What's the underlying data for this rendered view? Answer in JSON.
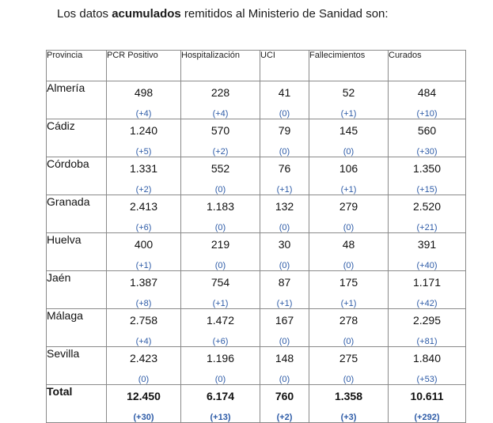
{
  "intro": {
    "prefix": "Los datos ",
    "bold": "acumulados",
    "suffix": " remitidos al Ministerio de Sanidad son:"
  },
  "table": {
    "headers": [
      "Provincia",
      "PCR Positivo",
      "Hospitalización",
      "UCI",
      "Fallecimientos",
      "Curados"
    ],
    "rows": [
      {
        "provincia": "Almería",
        "values": [
          "498",
          "228",
          "41",
          "52",
          "484"
        ],
        "deltas": [
          "(+4)",
          "(+4)",
          "(0)",
          "(+1)",
          "(+10)"
        ]
      },
      {
        "provincia": "Cádiz",
        "values": [
          "1.240",
          "570",
          "79",
          "145",
          "560"
        ],
        "deltas": [
          "(+5)",
          "(+2)",
          "(0)",
          "(0)",
          "(+30)"
        ]
      },
      {
        "provincia": "Córdoba",
        "values": [
          "1.331",
          "552",
          "76",
          "106",
          "1.350"
        ],
        "deltas": [
          "(+2)",
          "(0)",
          "(+1)",
          "(+1)",
          "(+15)"
        ]
      },
      {
        "provincia": "Granada",
        "values": [
          "2.413",
          "1.183",
          "132",
          "279",
          "2.520"
        ],
        "deltas": [
          "(+6)",
          "(0)",
          "(0)",
          "(0)",
          "(+21)"
        ]
      },
      {
        "provincia": "Huelva",
        "values": [
          "400",
          "219",
          "30",
          "48",
          "391"
        ],
        "deltas": [
          "(+1)",
          "(0)",
          "(0)",
          "(0)",
          "(+40)"
        ]
      },
      {
        "provincia": "Jaén",
        "values": [
          "1.387",
          "754",
          "87",
          "175",
          "1.171"
        ],
        "deltas": [
          "(+8)",
          "(+1)",
          "(+1)",
          "(+1)",
          "(+42)"
        ]
      },
      {
        "provincia": "Málaga",
        "values": [
          "2.758",
          "1.472",
          "167",
          "278",
          "2.295"
        ],
        "deltas": [
          "(+4)",
          "(+6)",
          "(0)",
          "(0)",
          "(+81)"
        ]
      },
      {
        "provincia": "Sevilla",
        "values": [
          "2.423",
          "1.196",
          "148",
          "275",
          "1.840"
        ],
        "deltas": [
          "(0)",
          "(0)",
          "(0)",
          "(0)",
          "(+53)"
        ]
      }
    ],
    "total": {
      "provincia": "Total",
      "values": [
        "12.450",
        "6.174",
        "760",
        "1.358",
        "10.611"
      ],
      "deltas": [
        "(+30)",
        "(+13)",
        "(+2)",
        "(+3)",
        "(+292)"
      ]
    }
  }
}
